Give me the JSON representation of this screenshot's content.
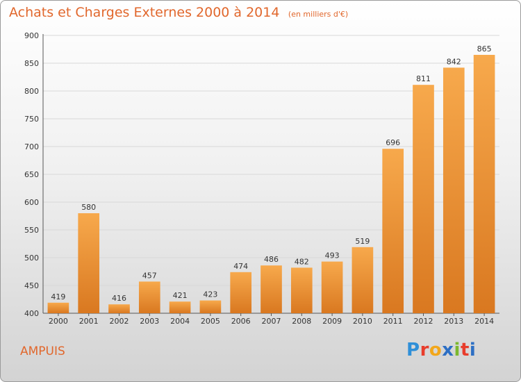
{
  "title": {
    "main": "Achats et Charges Externes 2000 à 2014",
    "unit": "(en milliers d'€)"
  },
  "location": "AMPUIS",
  "logo": {
    "letters": [
      {
        "char": "P",
        "color": "#2f8fd8"
      },
      {
        "char": "r",
        "color": "#e83c2b"
      },
      {
        "char": "o",
        "color": "#f2a71b"
      },
      {
        "char": "x",
        "color": "#2d6fc4"
      },
      {
        "char": "i",
        "color": "#7cb82f"
      },
      {
        "char": "t",
        "color": "#e83c2b"
      },
      {
        "char": "i",
        "color": "#2d6fc4"
      }
    ]
  },
  "colors": {
    "bar_light": "#f7a94c",
    "bar_dark": "#d97820",
    "title": "#e1672c",
    "grid": "#d8d8d8"
  },
  "chart_data": {
    "type": "bar",
    "title": "Achats et Charges Externes 2000 à 2014",
    "subtitle": "(en milliers d'€)",
    "categories": [
      "2000",
      "2001",
      "2002",
      "2003",
      "2004",
      "2005",
      "2006",
      "2007",
      "2008",
      "2009",
      "2010",
      "2011",
      "2012",
      "2013",
      "2014"
    ],
    "values": [
      419,
      580,
      416,
      457,
      421,
      423,
      474,
      486,
      482,
      493,
      519,
      696,
      811,
      842,
      865
    ],
    "ylim": [
      400,
      900
    ],
    "yticks": [
      400,
      450,
      500,
      550,
      600,
      650,
      700,
      750,
      800,
      850,
      900
    ],
    "grid": true,
    "data_labels": true
  }
}
